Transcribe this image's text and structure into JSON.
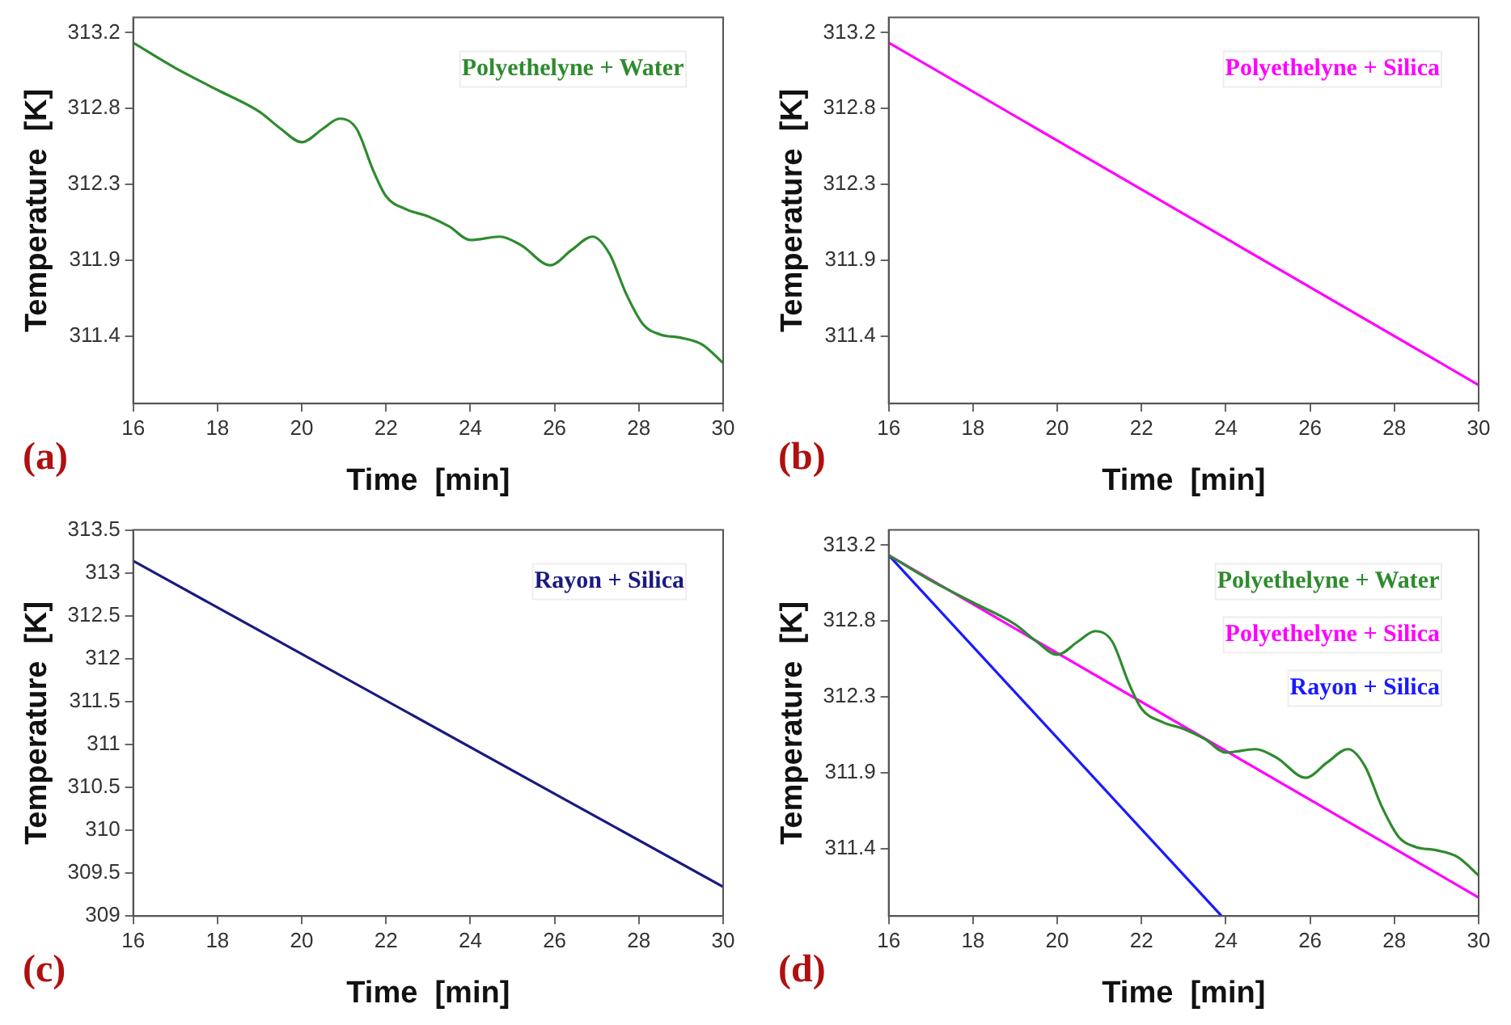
{
  "chart_data": [
    {
      "type": "line",
      "xlabel": "Time  [min]",
      "ylabel": "Temperature  [K]",
      "annotations": [
        "(a)"
      ],
      "legend": "top right",
      "xlim": [
        16,
        30
      ],
      "xticks": [
        16,
        18,
        20,
        22,
        24,
        26,
        28,
        30
      ],
      "ylim": [
        311.0,
        313.29
      ],
      "yticks": [
        {
          "value": 311.4,
          "label": "311.4"
        },
        {
          "value": 311.85,
          "label": "311.9"
        },
        {
          "value": 312.3,
          "label": "312.3"
        },
        {
          "value": 312.75,
          "label": "312.8"
        },
        {
          "value": 313.2,
          "label": "313.2"
        }
      ],
      "series": [
        {
          "name": "Polyethelyne + Water",
          "color": "#2e8b2e",
          "x": [
            16,
            17,
            18,
            19,
            19.5,
            20,
            20.5,
            20.9,
            21.3,
            21.7,
            22,
            22.5,
            23,
            23.5,
            24,
            24.7,
            25.2,
            25.9,
            26.4,
            26.9,
            27.3,
            27.7,
            28.1,
            28.5,
            29,
            29.5,
            30
          ],
          "values": [
            313.14,
            312.99,
            312.86,
            312.73,
            312.63,
            312.55,
            312.63,
            312.69,
            312.63,
            312.38,
            312.23,
            312.15,
            312.11,
            312.05,
            311.97,
            311.99,
            311.94,
            311.82,
            311.91,
            311.99,
            311.89,
            311.65,
            311.47,
            311.41,
            311.39,
            311.35,
            311.24
          ]
        }
      ]
    },
    {
      "type": "line",
      "xlabel": "Time  [min]",
      "ylabel": "Temperature  [K]",
      "annotations": [
        "(b)"
      ],
      "legend": "top right",
      "xlim": [
        16,
        30
      ],
      "xticks": [
        16,
        18,
        20,
        22,
        24,
        26,
        28,
        30
      ],
      "ylim": [
        311.0,
        313.29
      ],
      "yticks": [
        {
          "value": 311.4,
          "label": "311.4"
        },
        {
          "value": 311.85,
          "label": "311.9"
        },
        {
          "value": 312.3,
          "label": "312.3"
        },
        {
          "value": 312.75,
          "label": "312.8"
        },
        {
          "value": 313.2,
          "label": "313.2"
        }
      ],
      "series": [
        {
          "name": "Polyethelyne + Silica",
          "color": "#ff00ff",
          "x": [
            16,
            30
          ],
          "values": [
            313.14,
            311.11
          ]
        }
      ]
    },
    {
      "type": "line",
      "xlabel": "Time  [min]",
      "ylabel": "Temperature  [K]",
      "annotations": [
        "(c)"
      ],
      "legend": "top right",
      "xlim": [
        16,
        30
      ],
      "xticks": [
        16,
        18,
        20,
        22,
        24,
        26,
        28,
        30
      ],
      "ylim": [
        309,
        313.5
      ],
      "yticks": [
        309,
        309.5,
        310,
        310.5,
        311,
        311.5,
        312,
        312.5,
        313,
        313.5
      ],
      "series": [
        {
          "name": "Rayon + Silica",
          "color": "#1a1a80",
          "x": [
            16,
            30
          ],
          "values": [
            313.14,
            309.34
          ]
        }
      ]
    },
    {
      "type": "line",
      "xlabel": "Time  [min]",
      "ylabel": "Temperature  [K]",
      "annotations": [
        "(d)"
      ],
      "legend": "top right",
      "xlim": [
        16,
        30
      ],
      "xticks": [
        16,
        18,
        20,
        22,
        24,
        26,
        28,
        30
      ],
      "ylim": [
        311.0,
        313.29
      ],
      "yticks": [
        {
          "value": 311.4,
          "label": "311.4"
        },
        {
          "value": 311.85,
          "label": "311.9"
        },
        {
          "value": 312.3,
          "label": "312.3"
        },
        {
          "value": 312.75,
          "label": "312.8"
        },
        {
          "value": 313.2,
          "label": "313.2"
        }
      ],
      "series": [
        {
          "name": "Polyethelyne + Water",
          "color": "#2e8b2e",
          "x": [
            16,
            17,
            18,
            19,
            19.5,
            20,
            20.5,
            20.9,
            21.3,
            21.7,
            22,
            22.5,
            23,
            23.5,
            24,
            24.7,
            25.2,
            25.9,
            26.4,
            26.9,
            27.3,
            27.7,
            28.1,
            28.5,
            29,
            29.5,
            30
          ],
          "values": [
            313.14,
            312.99,
            312.86,
            312.73,
            312.63,
            312.55,
            312.63,
            312.69,
            312.63,
            312.38,
            312.23,
            312.15,
            312.11,
            312.05,
            311.97,
            311.99,
            311.94,
            311.82,
            311.91,
            311.99,
            311.89,
            311.65,
            311.47,
            311.41,
            311.39,
            311.35,
            311.24
          ]
        },
        {
          "name": "Polyethelyne + Silica",
          "color": "#ff00ff",
          "x": [
            16,
            30
          ],
          "values": [
            313.14,
            311.11
          ]
        },
        {
          "name": "Rayon + Silica",
          "color": "#1a1aff",
          "x": [
            16,
            23.9
          ],
          "values": [
            313.14,
            311.0
          ]
        }
      ]
    }
  ]
}
